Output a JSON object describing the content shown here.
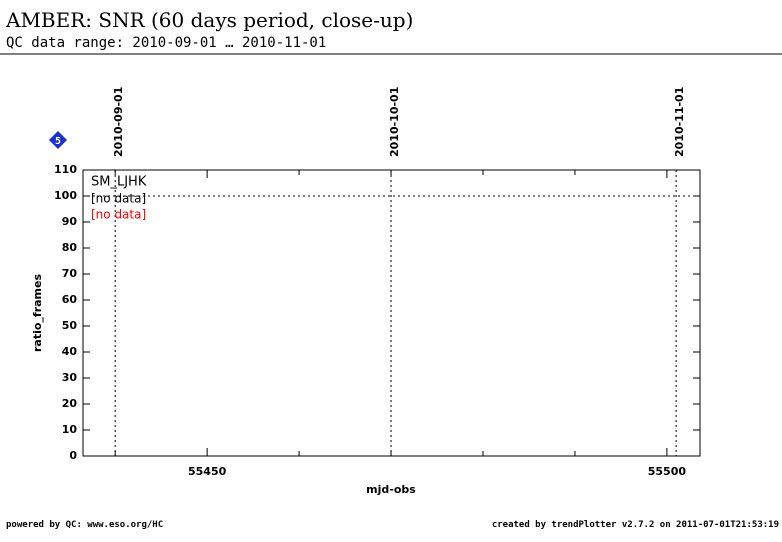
{
  "header": {
    "title": "AMBER: SNR (60 days period, close-up)",
    "subtitle": "QC data range: 2010-09-01 … 2010-11-01"
  },
  "badge": "5",
  "chart_data": {
    "type": "line",
    "xlabel": "mjd-obs",
    "ylabel": "ratio_frames",
    "xlim": [
      55436.5,
      55503.6
    ],
    "xticks": [
      55450,
      55500
    ],
    "xminor": [
      55440,
      55460,
      55470,
      55480,
      55490
    ],
    "ylim": [
      0,
      110
    ],
    "yticks": [
      0,
      10,
      20,
      30,
      40,
      50,
      60,
      70,
      80,
      90,
      100,
      110
    ],
    "ref_line": 100,
    "date_markers": [
      {
        "value": 55440,
        "label": "2010-09-01"
      },
      {
        "value": 55470,
        "label": "2010-10-01"
      },
      {
        "value": 55501,
        "label": "2010-11-01"
      }
    ],
    "legend_title": "SM_LJHK",
    "series": [
      {
        "name": "[no data]",
        "color": "#000000",
        "values": []
      },
      {
        "name": "[no data]",
        "color": "#ff0000",
        "values": []
      }
    ]
  },
  "footer": {
    "left": "powered by QC: www.eso.org/HC",
    "right": "created by trendPlotter v2.7.2 on 2011-07-01T21:53:19"
  }
}
